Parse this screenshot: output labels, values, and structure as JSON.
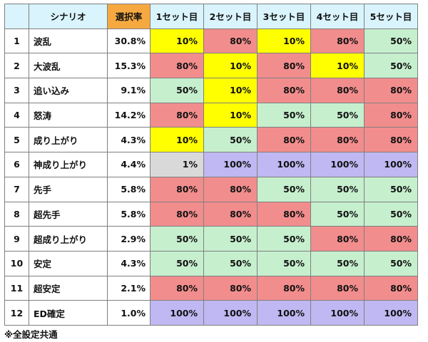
{
  "table": {
    "headers": [
      "",
      "シナリオ",
      "選択率",
      "1セット目",
      "2セット目",
      "3セット目",
      "4セット目",
      "5セット目"
    ],
    "rows": [
      {
        "no": "1",
        "name": "波乱",
        "rate": "30.8%",
        "sets": [
          "10%",
          "80%",
          "10%",
          "80%",
          "50%"
        ]
      },
      {
        "no": "2",
        "name": "大波乱",
        "rate": "15.3%",
        "sets": [
          "80%",
          "10%",
          "80%",
          "10%",
          "50%"
        ]
      },
      {
        "no": "3",
        "name": "追い込み",
        "rate": "9.1%",
        "sets": [
          "50%",
          "10%",
          "80%",
          "80%",
          "80%"
        ]
      },
      {
        "no": "4",
        "name": "怒涛",
        "rate": "14.2%",
        "sets": [
          "80%",
          "10%",
          "50%",
          "50%",
          "80%"
        ]
      },
      {
        "no": "5",
        "name": "成り上がり",
        "rate": "4.3%",
        "sets": [
          "10%",
          "50%",
          "80%",
          "80%",
          "80%"
        ]
      },
      {
        "no": "6",
        "name": "神成り上がり",
        "rate": "4.4%",
        "sets": [
          "1%",
          "100%",
          "100%",
          "100%",
          "100%"
        ]
      },
      {
        "no": "7",
        "name": "先手",
        "rate": "5.8%",
        "sets": [
          "80%",
          "80%",
          "50%",
          "50%",
          "50%"
        ]
      },
      {
        "no": "8",
        "name": "超先手",
        "rate": "5.8%",
        "sets": [
          "80%",
          "80%",
          "80%",
          "50%",
          "50%"
        ]
      },
      {
        "no": "9",
        "name": "超成り上がり",
        "rate": "2.9%",
        "sets": [
          "50%",
          "50%",
          "50%",
          "80%",
          "80%"
        ]
      },
      {
        "no": "10",
        "name": "安定",
        "rate": "4.3%",
        "sets": [
          "50%",
          "50%",
          "50%",
          "50%",
          "50%"
        ]
      },
      {
        "no": "11",
        "name": "超安定",
        "rate": "2.1%",
        "sets": [
          "80%",
          "80%",
          "80%",
          "80%",
          "80%"
        ]
      },
      {
        "no": "12",
        "name": "ED確定",
        "rate": "1.0%",
        "sets": [
          "100%",
          "100%",
          "100%",
          "100%",
          "100%"
        ]
      }
    ]
  },
  "colors": {
    "header_bg": "#d9f4fd",
    "header_highlight": "#f7a941",
    "value_1": "#d9d9d9",
    "value_10": "#ffff00",
    "value_50": "#c6efce",
    "value_80": "#f28d8d",
    "value_100": "#bfb8f2"
  },
  "footnote": "※全設定共通"
}
